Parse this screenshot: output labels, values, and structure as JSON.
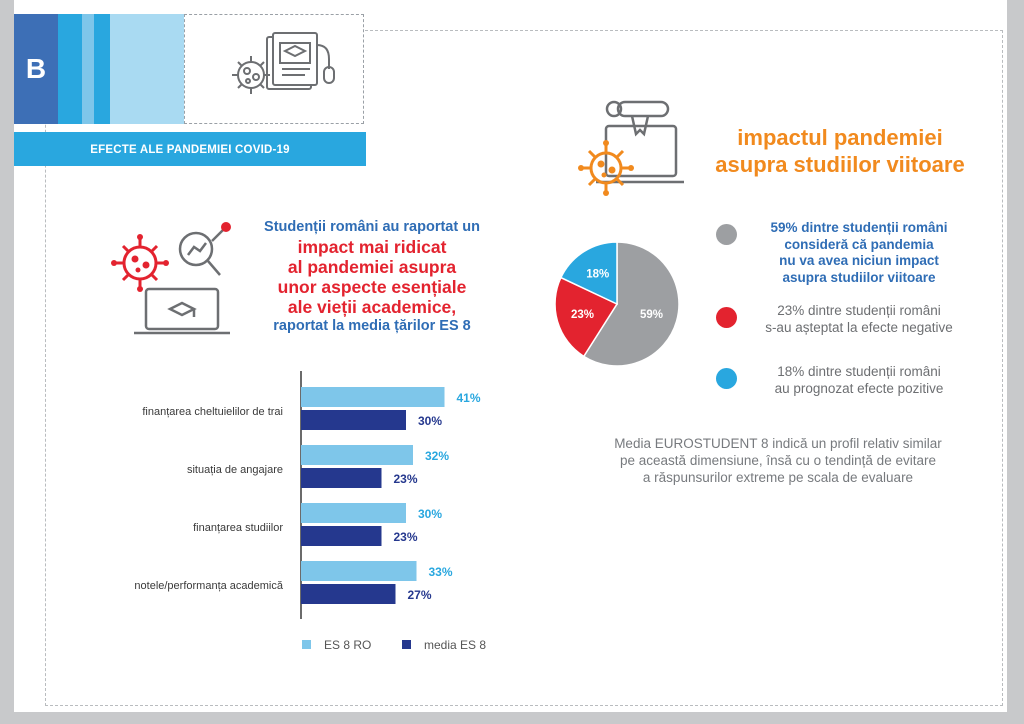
{
  "badge": {
    "letter": "B"
  },
  "banner": {
    "title": "EFECTE ALE PANDEMIEI COVID-19"
  },
  "intro": {
    "line1": "Studenții români au raportat un",
    "red_lines": [
      "impact mai ridicat",
      "al pandemiei asupra",
      "unor aspecte esențiale",
      "ale vieții academice,"
    ],
    "line_last": "raportat la media țărilor ES 8"
  },
  "headline": {
    "line1": "impactul pandemiei",
    "line2": "asupra studiilor viitoare"
  },
  "legend": [
    {
      "lines": [
        "59% dintre studenții români",
        "consideră că pandemia",
        "nu va avea niciun impact",
        "asupra studiilor viitoare"
      ],
      "color": "#9d9fa2",
      "text_color": "#2f6db5",
      "bold": true
    },
    {
      "lines": [
        "23% dintre studenții români",
        "s-au așteptat la efecte negative"
      ],
      "color": "#e3232f",
      "text_color": "#6d6f72",
      "bold": false
    },
    {
      "lines": [
        "18% dintre studenții români",
        "au prognozat efecte pozitive"
      ],
      "color": "#29a7df",
      "text_color": "#6d6f72",
      "bold": false
    }
  ],
  "note": {
    "lines": [
      "Media EUROSTUDENT 8 indică un profil relativ similar",
      "pe această dimensiune, însă cu o tendință de evitare",
      "a răspunsurilor extreme pe scala de evaluare"
    ]
  },
  "colors": {
    "ro": "#7ec6ea",
    "es8": "#25388e",
    "pie_grey": "#9d9fa2",
    "pie_red": "#e3232f",
    "pie_blue": "#29a7df"
  },
  "chart_data": [
    {
      "type": "bar",
      "orientation": "horizontal",
      "categories": [
        "finanțarea cheltuielilor de trai",
        "situația de angajare",
        "finanțarea studiilor",
        "notele/performanța academică"
      ],
      "series": [
        {
          "name": "ES 8 RO",
          "values": [
            41,
            32,
            30,
            33
          ],
          "labels": [
            "41%",
            "32%",
            "30%",
            "33%"
          ]
        },
        {
          "name": "media ES 8",
          "values": [
            30,
            23,
            23,
            27
          ],
          "labels": [
            "30%",
            "23%",
            "23%",
            "27%"
          ]
        }
      ],
      "xlim": [
        0,
        100
      ],
      "legend": "bottom"
    },
    {
      "type": "pie",
      "labels": [
        "59%",
        "23%",
        "18%"
      ],
      "values": [
        59,
        23,
        18
      ],
      "categories": [
        "nu va avea niciun impact",
        "efecte negative",
        "efecte pozitive"
      ]
    }
  ]
}
